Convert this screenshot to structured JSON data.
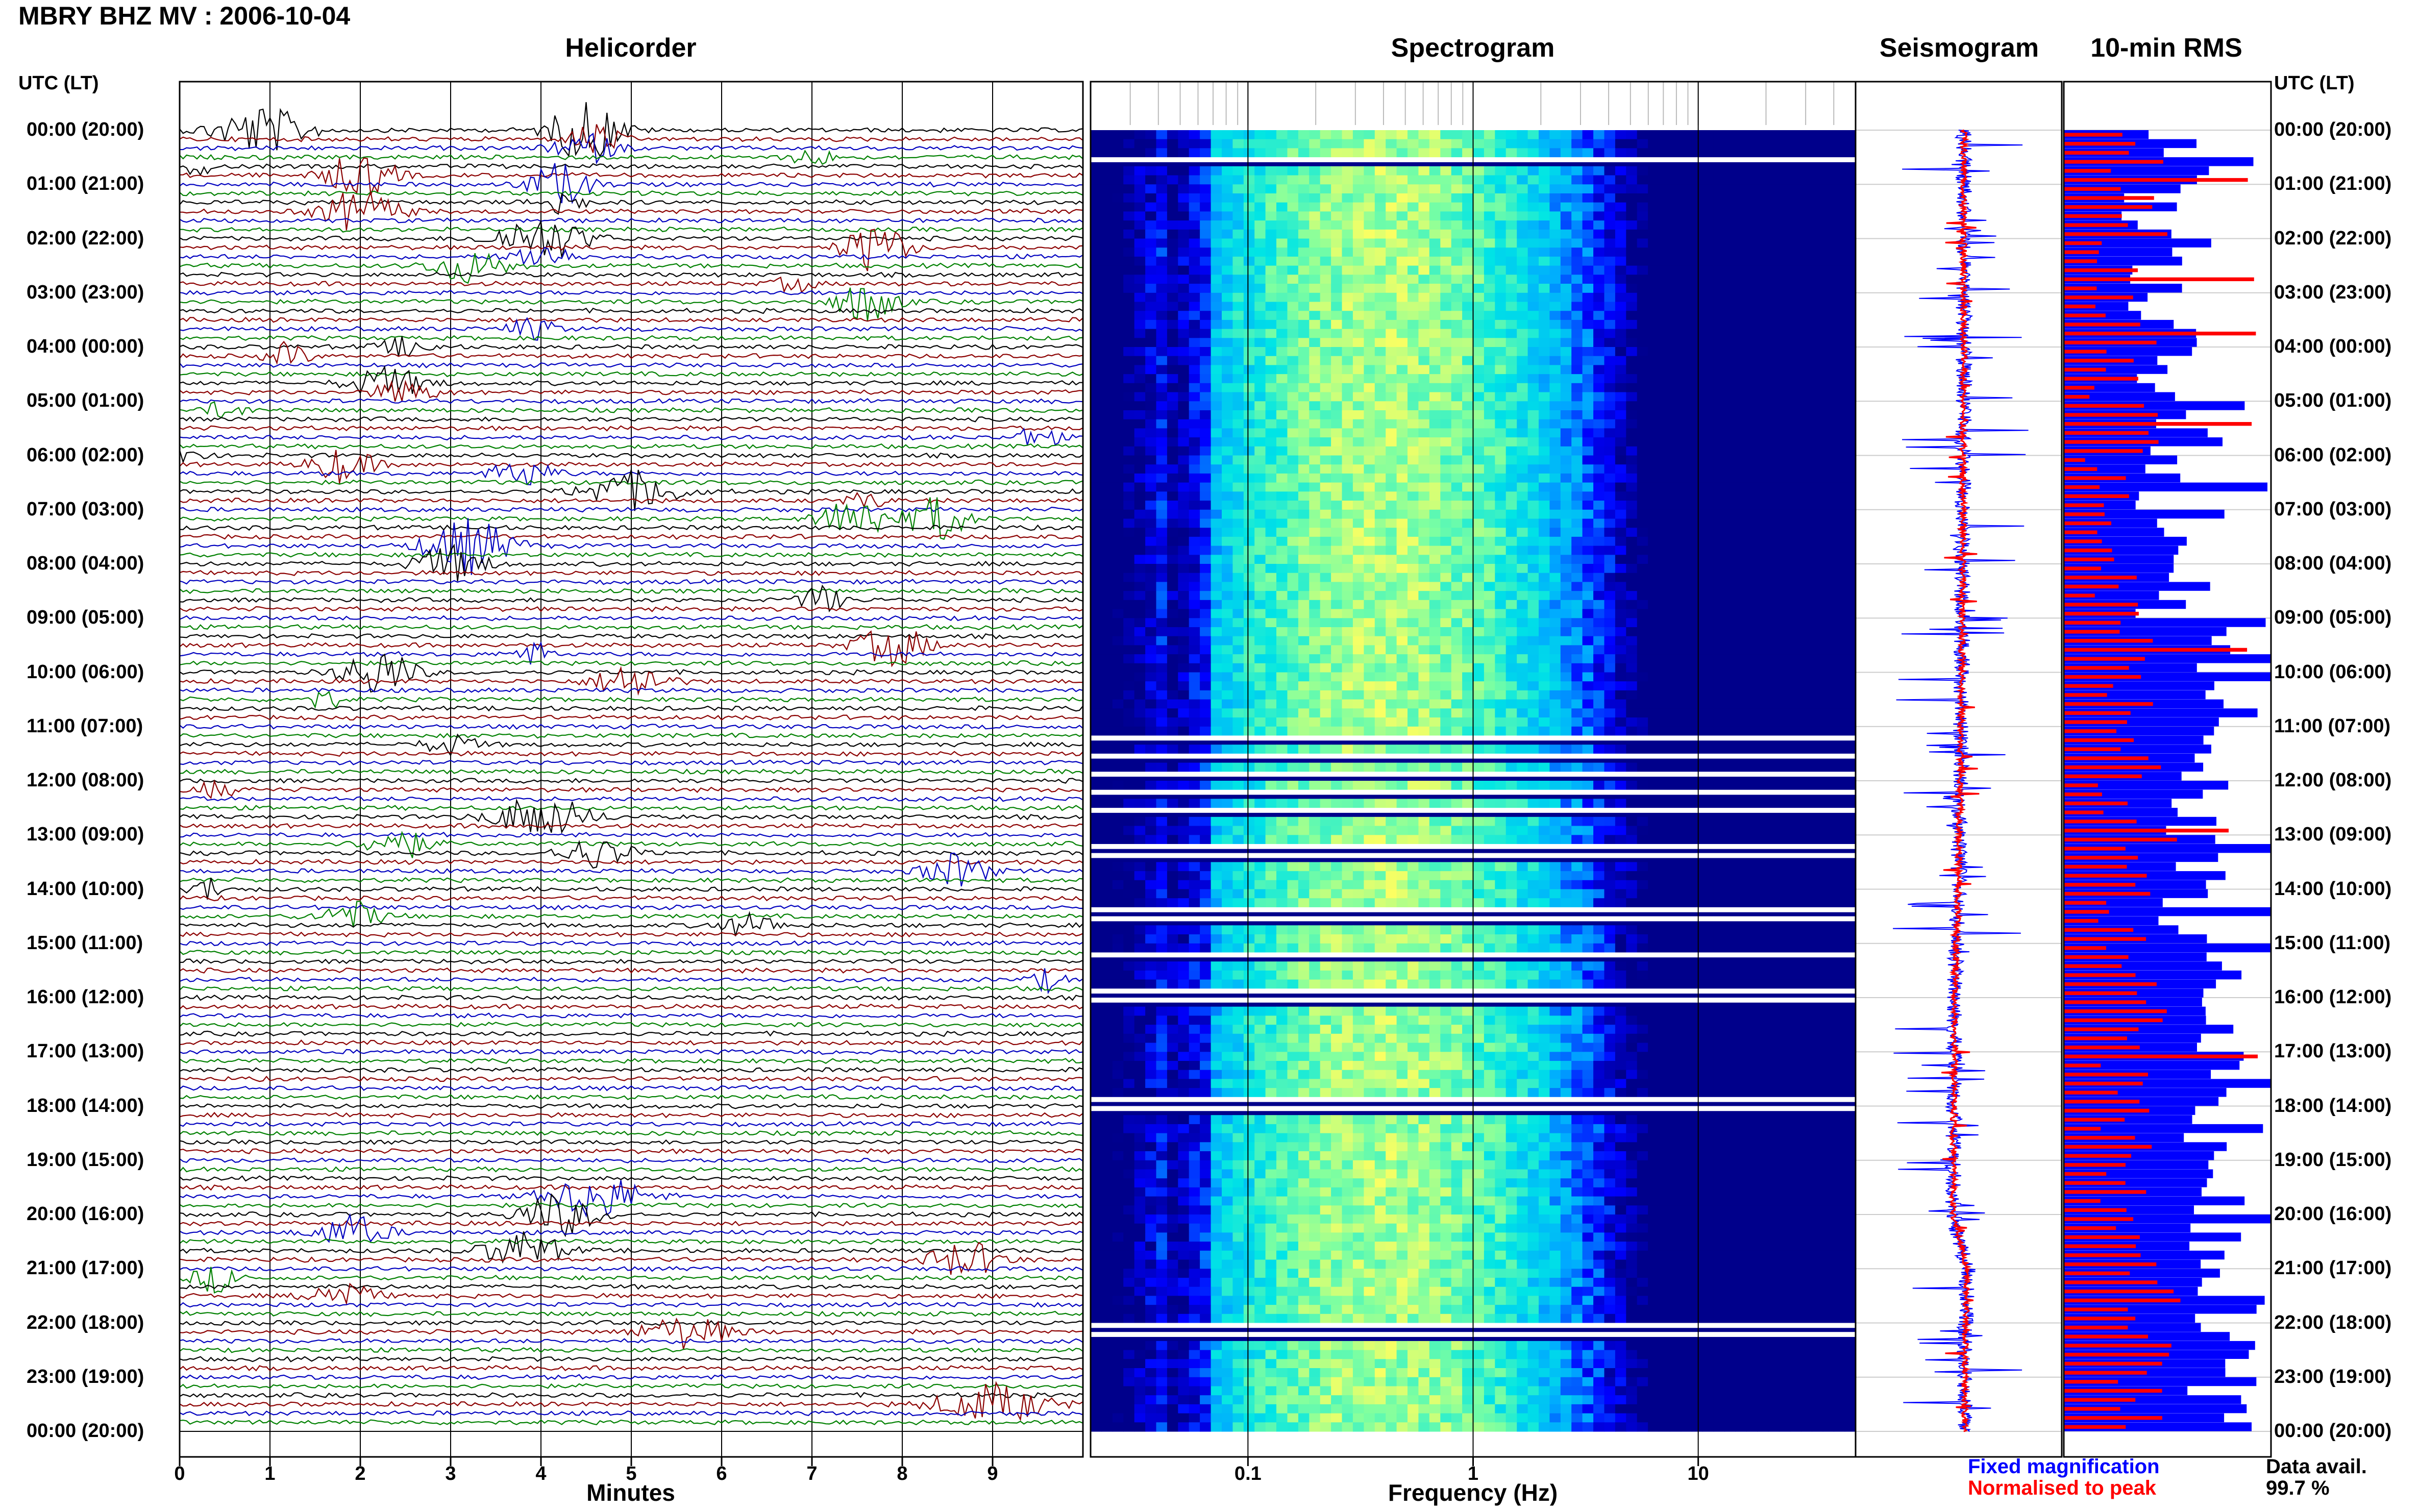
{
  "page_title": "MBRY BHZ MV : 2006-10-04",
  "panels": {
    "helicorder": "Helicorder",
    "spectrogram": "Spectrogram",
    "seismogram": "Seismogram",
    "rms": "10-min RMS"
  },
  "time_axis_label_left": "UTC (LT)",
  "time_axis_label_right": "UTC (LT)",
  "time_labels": [
    "00:00 (20:00)",
    "01:00 (21:00)",
    "02:00 (22:00)",
    "03:00 (23:00)",
    "04:00 (00:00)",
    "05:00 (01:00)",
    "06:00 (02:00)",
    "07:00 (03:00)",
    "08:00 (04:00)",
    "09:00 (05:00)",
    "10:00 (06:00)",
    "11:00 (07:00)",
    "12:00 (08:00)",
    "13:00 (09:00)",
    "14:00 (10:00)",
    "15:00 (11:00)",
    "16:00 (12:00)",
    "17:00 (13:00)",
    "18:00 (14:00)",
    "19:00 (15:00)",
    "20:00 (16:00)",
    "21:00 (17:00)",
    "22:00 (18:00)",
    "23:00 (19:00)",
    "00:00 (20:00)"
  ],
  "legend": {
    "fixed": "Fixed magnification",
    "normalised": "Normalised to peak",
    "avail_label": "Data avail.",
    "avail_value": "99.7 %"
  },
  "colors": {
    "trace_cycle": [
      "#000000",
      "#8b0000",
      "#0000bf",
      "#008000"
    ],
    "rms_fixed": "#0000ff",
    "rms_normalised": "#ff0000",
    "spec_background": "#00008b"
  },
  "chart_data": [
    {
      "type": "line",
      "name": "helicorder",
      "title": "Helicorder",
      "xlabel": "Minutes",
      "ylabel": "UTC (LT)",
      "xlim": [
        0,
        10
      ],
      "x_ticks": [
        "0",
        "1",
        "2",
        "3",
        "4",
        "5",
        "6",
        "7",
        "8",
        "9"
      ],
      "rows_per_hour": 6,
      "row_count": 144,
      "events": [
        {
          "row": 0,
          "minute": 0.9,
          "width": 1.2,
          "amp": 2.6
        },
        {
          "row": 0,
          "minute": 4.5,
          "width": 0.9,
          "amp": 3.5
        },
        {
          "row": 1,
          "minute": 4.6,
          "width": 0.6,
          "amp": 2.0
        },
        {
          "row": 2,
          "minute": 4.5,
          "width": 0.8,
          "amp": 1.6
        },
        {
          "row": 3,
          "minute": 7.0,
          "width": 0.5,
          "amp": 1.1
        },
        {
          "row": 4,
          "minute": 0.2,
          "width": 0.3,
          "amp": 1.2
        },
        {
          "row": 5,
          "minute": 2.0,
          "width": 0.9,
          "amp": 2.4
        },
        {
          "row": 6,
          "minute": 4.2,
          "width": 0.8,
          "amp": 2.3
        },
        {
          "row": 8,
          "minute": 4.2,
          "width": 0.6,
          "amp": 1.5
        },
        {
          "row": 9,
          "minute": 2.0,
          "width": 1.0,
          "amp": 2.3
        },
        {
          "row": 12,
          "minute": 4.0,
          "width": 1.2,
          "amp": 2.4
        },
        {
          "row": 13,
          "minute": 7.7,
          "width": 0.8,
          "amp": 2.8
        },
        {
          "row": 14,
          "minute": 4.0,
          "width": 0.8,
          "amp": 1.4
        },
        {
          "row": 15,
          "minute": 3.2,
          "width": 1.0,
          "amp": 1.8
        },
        {
          "row": 17,
          "minute": 6.8,
          "width": 0.5,
          "amp": 0.9
        },
        {
          "row": 19,
          "minute": 7.6,
          "width": 0.8,
          "amp": 2.2
        },
        {
          "row": 22,
          "minute": 3.9,
          "width": 0.6,
          "amp": 1.2
        },
        {
          "row": 24,
          "minute": 2.5,
          "width": 0.7,
          "amp": 1.0
        },
        {
          "row": 25,
          "minute": 1.2,
          "width": 0.5,
          "amp": 1.4
        },
        {
          "row": 28,
          "minute": 2.3,
          "width": 1.0,
          "amp": 1.7
        },
        {
          "row": 29,
          "minute": 2.5,
          "width": 0.8,
          "amp": 1.2
        },
        {
          "row": 31,
          "minute": 0.5,
          "width": 0.5,
          "amp": 1.0
        },
        {
          "row": 34,
          "minute": 9.5,
          "width": 0.5,
          "amp": 1.5
        },
        {
          "row": 36,
          "minute": 0.1,
          "width": 0.4,
          "amp": 1.0
        },
        {
          "row": 37,
          "minute": 1.8,
          "width": 0.8,
          "amp": 1.9
        },
        {
          "row": 38,
          "minute": 3.8,
          "width": 0.8,
          "amp": 1.5
        },
        {
          "row": 40,
          "minute": 5.0,
          "width": 1.2,
          "amp": 2.2
        },
        {
          "row": 41,
          "minute": 7.6,
          "width": 0.5,
          "amp": 0.9
        },
        {
          "row": 43,
          "minute": 7.5,
          "width": 0.9,
          "amp": 2.4
        },
        {
          "row": 43,
          "minute": 8.4,
          "width": 0.7,
          "amp": 2.6
        },
        {
          "row": 46,
          "minute": 3.2,
          "width": 1.1,
          "amp": 3.0
        },
        {
          "row": 48,
          "minute": 3.0,
          "width": 0.9,
          "amp": 2.0
        },
        {
          "row": 52,
          "minute": 7.1,
          "width": 0.5,
          "amp": 1.8
        },
        {
          "row": 57,
          "minute": 7.9,
          "width": 0.9,
          "amp": 2.2
        },
        {
          "row": 58,
          "minute": 3.9,
          "width": 0.5,
          "amp": 1.3
        },
        {
          "row": 60,
          "minute": 2.2,
          "width": 0.9,
          "amp": 2.7
        },
        {
          "row": 61,
          "minute": 5.0,
          "width": 0.9,
          "amp": 1.9
        },
        {
          "row": 63,
          "minute": 1.6,
          "width": 0.5,
          "amp": 1.0
        },
        {
          "row": 68,
          "minute": 3.0,
          "width": 0.7,
          "amp": 1.1
        },
        {
          "row": 73,
          "minute": 0.4,
          "width": 0.5,
          "amp": 0.9
        },
        {
          "row": 76,
          "minute": 4.0,
          "width": 1.2,
          "amp": 2.4
        },
        {
          "row": 79,
          "minute": 2.4,
          "width": 0.8,
          "amp": 1.8
        },
        {
          "row": 80,
          "minute": 4.6,
          "width": 0.9,
          "amp": 1.7
        },
        {
          "row": 82,
          "minute": 8.6,
          "width": 0.8,
          "amp": 2.0
        },
        {
          "row": 84,
          "minute": 0.3,
          "width": 0.4,
          "amp": 1.3
        },
        {
          "row": 87,
          "minute": 1.9,
          "width": 0.8,
          "amp": 1.6
        },
        {
          "row": 88,
          "minute": 6.3,
          "width": 0.8,
          "amp": 1.2
        },
        {
          "row": 94,
          "minute": 9.6,
          "width": 0.4,
          "amp": 1.2
        },
        {
          "row": 118,
          "minute": 4.6,
          "width": 1.2,
          "amp": 2.5
        },
        {
          "row": 120,
          "minute": 4.2,
          "width": 1.0,
          "amp": 2.3
        },
        {
          "row": 122,
          "minute": 1.9,
          "width": 0.9,
          "amp": 1.8
        },
        {
          "row": 124,
          "minute": 3.8,
          "width": 1.0,
          "amp": 2.1
        },
        {
          "row": 125,
          "minute": 8.7,
          "width": 0.9,
          "amp": 2.0
        },
        {
          "row": 127,
          "minute": 0.4,
          "width": 0.6,
          "amp": 1.5
        },
        {
          "row": 129,
          "minute": 1.8,
          "width": 0.8,
          "amp": 1.7
        },
        {
          "row": 133,
          "minute": 5.6,
          "width": 1.1,
          "amp": 1.8
        },
        {
          "row": 141,
          "minute": 9.0,
          "width": 1.4,
          "amp": 2.2
        }
      ]
    },
    {
      "type": "heatmap",
      "name": "spectrogram",
      "title": "Spectrogram",
      "xlabel": "Frequency (Hz)",
      "x_scale": "log",
      "xlim": [
        0.02,
        50
      ],
      "x_ticks": [
        {
          "value": 0.1,
          "label": "0.1"
        },
        {
          "value": 1,
          "label": "1"
        },
        {
          "value": 10,
          "label": "10"
        }
      ],
      "peak_frequency_hz": 0.4,
      "color_scale": [
        "#00008b",
        "#0000ff",
        "#00aaff",
        "#00e5e5",
        "#7fffa0",
        "#ffff60",
        "#ffb000"
      ],
      "gap_rows": [
        3,
        67,
        69,
        71,
        73,
        75,
        79,
        80,
        86,
        87,
        91,
        95,
        96,
        107,
        108,
        132,
        133
      ]
    },
    {
      "type": "line",
      "name": "seismogram",
      "title": "Seismogram",
      "series": [
        {
          "name": "Fixed magnification",
          "color": "#0000ff"
        },
        {
          "name": "Normalised to peak",
          "color": "#ff0000"
        }
      ],
      "drift_by_hour": [
        0,
        0,
        0,
        0,
        0,
        0,
        -0.1,
        -0.1,
        -0.1,
        -0.2,
        -0.2,
        -0.3,
        -0.4,
        -0.5,
        -0.6,
        -0.8,
        -1.0,
        -1.0,
        -1.1,
        -1.1,
        -1.2,
        0.4,
        0.2,
        0.1,
        0.1
      ]
    },
    {
      "type": "bar",
      "name": "rms",
      "title": "10-min RMS",
      "series": [
        {
          "name": "Fixed magnification",
          "color": "#0000ff",
          "values_by_hour": [
            0.55,
            0.45,
            0.45,
            0.48,
            0.46,
            0.55,
            0.48,
            0.62,
            0.48,
            0.66,
            0.65,
            0.68,
            0.65,
            0.68,
            0.58,
            0.78,
            0.72,
            0.7,
            0.72,
            0.74,
            0.75,
            0.8,
            0.78,
            0.76
          ]
        },
        {
          "name": "Normalised to peak",
          "color": "#ff0000",
          "values_by_hour": [
            0.35,
            0.4,
            0.3,
            0.3,
            0.25,
            0.38,
            0.25,
            0.28,
            0.25,
            0.3,
            0.35,
            0.38,
            0.3,
            0.4,
            0.28,
            0.35,
            0.38,
            0.32,
            0.3,
            0.28,
            0.3,
            0.42,
            0.45,
            0.4
          ]
        }
      ]
    }
  ]
}
